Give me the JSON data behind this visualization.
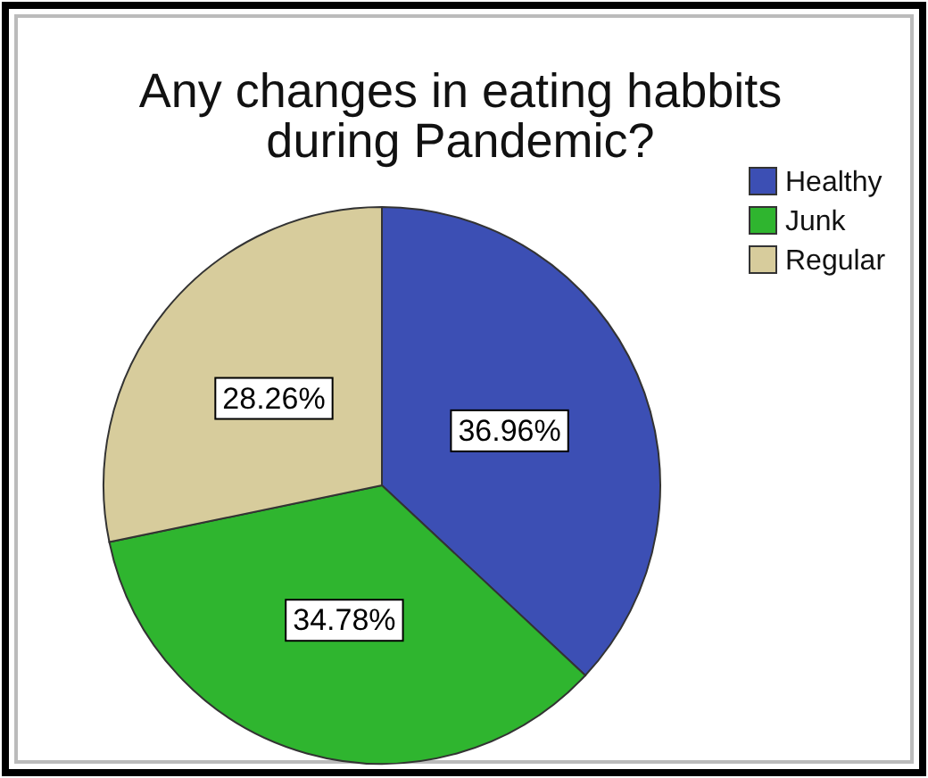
{
  "chart_data": {
    "type": "pie",
    "title": "Any changes in eating habbits\nduring Pandemic?",
    "categories": [
      "Healthy",
      "Junk",
      "Regular"
    ],
    "values": [
      36.96,
      34.78,
      28.26
    ],
    "colors": [
      "#3c4fb4",
      "#2fb52f",
      "#d7cc9c"
    ],
    "value_labels": [
      "36.96%",
      "34.78%",
      "28.26%"
    ],
    "legend": "top right"
  }
}
